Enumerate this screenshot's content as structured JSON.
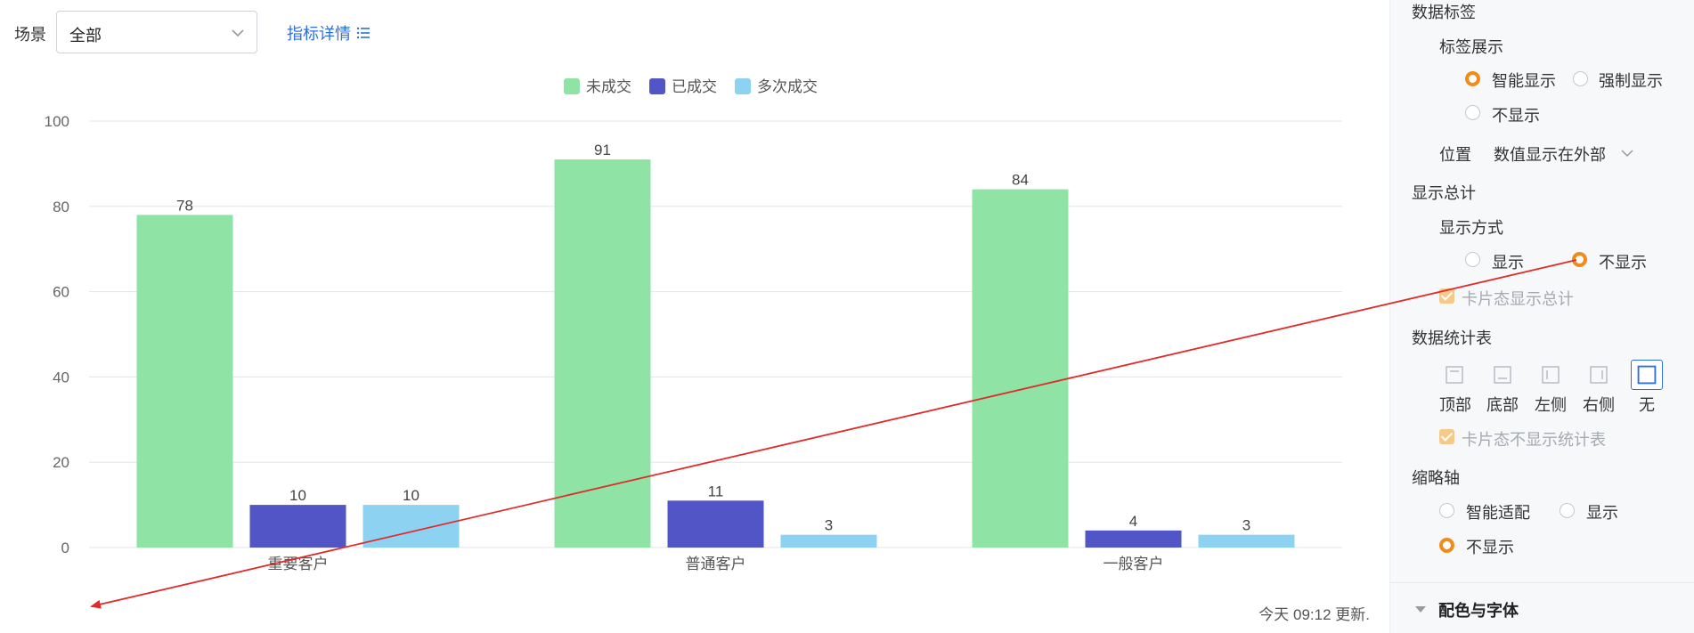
{
  "filter": {
    "label": "场景",
    "value": "全部"
  },
  "metric_link": "指标详情",
  "updated": "今天 09:12 更新.",
  "colors": {
    "accent": "#2f6fe0",
    "radio_on": "#f08c1a"
  },
  "chart_data": {
    "type": "bar",
    "categories": [
      "重要客户",
      "普通客户",
      "一般客户"
    ],
    "series": [
      {
        "name": "未成交",
        "color": "#8fe3a4",
        "values": [
          78,
          91,
          84
        ]
      },
      {
        "name": "已成交",
        "color": "#5255c6",
        "values": [
          10,
          11,
          4
        ]
      },
      {
        "name": "多次成交",
        "color": "#8dd3f1",
        "values": [
          10,
          3,
          3
        ]
      }
    ],
    "ylim": [
      0,
      100
    ],
    "yticks": [
      0,
      20,
      40,
      60,
      80,
      100
    ],
    "grid": true,
    "legend": "top-center",
    "data_labels": true
  },
  "panel": {
    "data_label": "数据标签",
    "label_display": "标签展示",
    "opt_smart": "智能显示",
    "opt_force": "强制显示",
    "opt_none": "不显示",
    "position_label": "位置",
    "position_value": "数值显示在外部",
    "show_total": "显示总计",
    "display_mode": "显示方式",
    "opt_show": "显示",
    "opt_hide": "不显示",
    "card_total": "卡片态显示总计",
    "stats_table": "数据统计表",
    "pos_top": "顶部",
    "pos_bottom": "底部",
    "pos_left": "左侧",
    "pos_right": "右侧",
    "pos_none": "无",
    "card_hide_table": "卡片态不显示统计表",
    "zoom_axis": "缩略轴",
    "zoom_smart": "智能适配",
    "zoom_show": "显示",
    "zoom_hide": "不显示",
    "color_font": "配色与字体"
  }
}
